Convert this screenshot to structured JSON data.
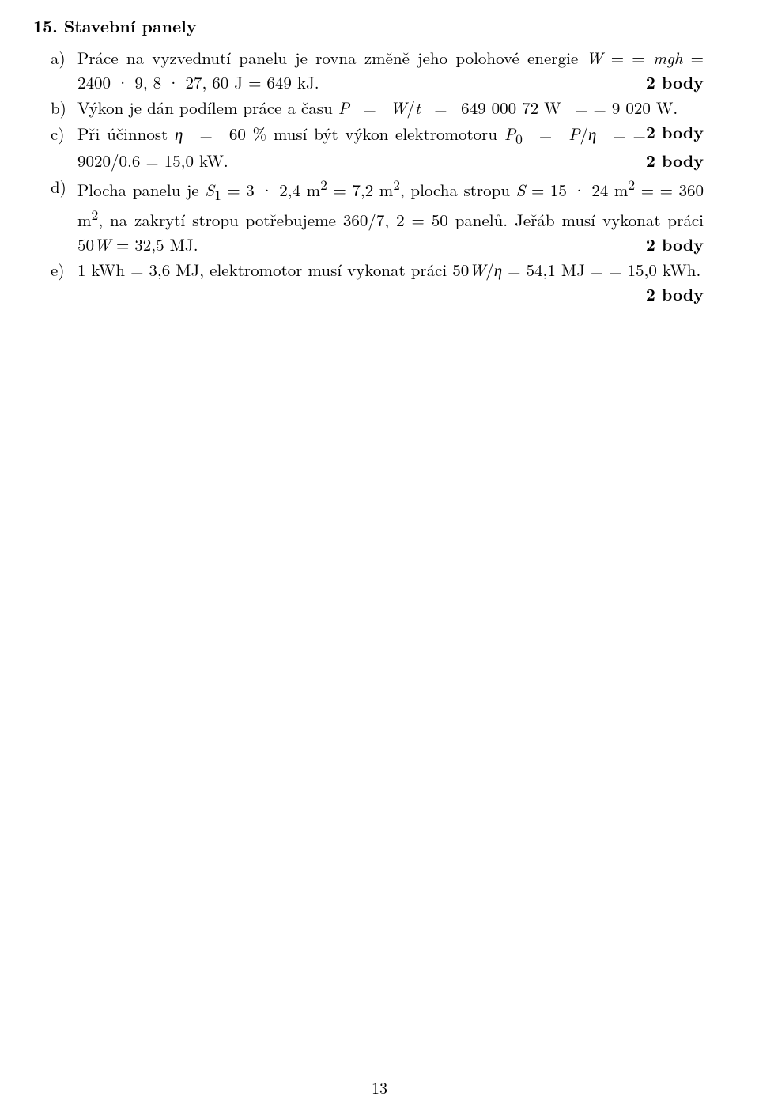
{
  "heading": "15. Stavební panely",
  "points_label": "2 body",
  "items": {
    "a": {
      "marker": "a)",
      "html": "Práce na vyzvednutí panelu je rovna změně jeho polohové energie <i>W</i> = = <i>mgh</i> = 2400 · 9, 8 · 27, 60 J = 649 kJ."
    },
    "b": {
      "marker": "b)",
      "html": "Výkon je dán podílem práce a času <i>P</i> &nbsp;=&nbsp; <i>W</i>/<i>t</i> &nbsp;=&nbsp; 649 000 72 W &nbsp;= = 9 020 W."
    },
    "c": {
      "marker": "c)",
      "html": "Při účinnost <i>η</i> &nbsp;=&nbsp; 60 % musí být výkon elektromotoru <i>P</i><sub>0</sub> &nbsp;=&nbsp; <i>P</i>/<i>η</i> &nbsp;= = 9020/0.6 = 15,0 kW."
    },
    "d": {
      "marker": "d)",
      "html": "Plocha panelu je <i>S</i><sub>1</sub> = 3 · 2,4 m<sup>2</sup> = 7,2 m<sup>2</sup>, plocha stropu <i>S</i> = 15 · 24 m<sup>2</sup> = = 360 m<sup>2</sup>, na zakrytí stropu potřebujeme 360/7, 2 = 50 panelů. Jeřáb musí vykonat práci 50<i>W</i> = 32,5 MJ."
    },
    "e": {
      "marker": "e)",
      "html": "1 kWh = 3,6 MJ, elektromotor musí vykonat práci 50<i>W</i>/<i>η</i> = 54,1 MJ = = 15,0 kWh."
    }
  },
  "page_number": "13"
}
